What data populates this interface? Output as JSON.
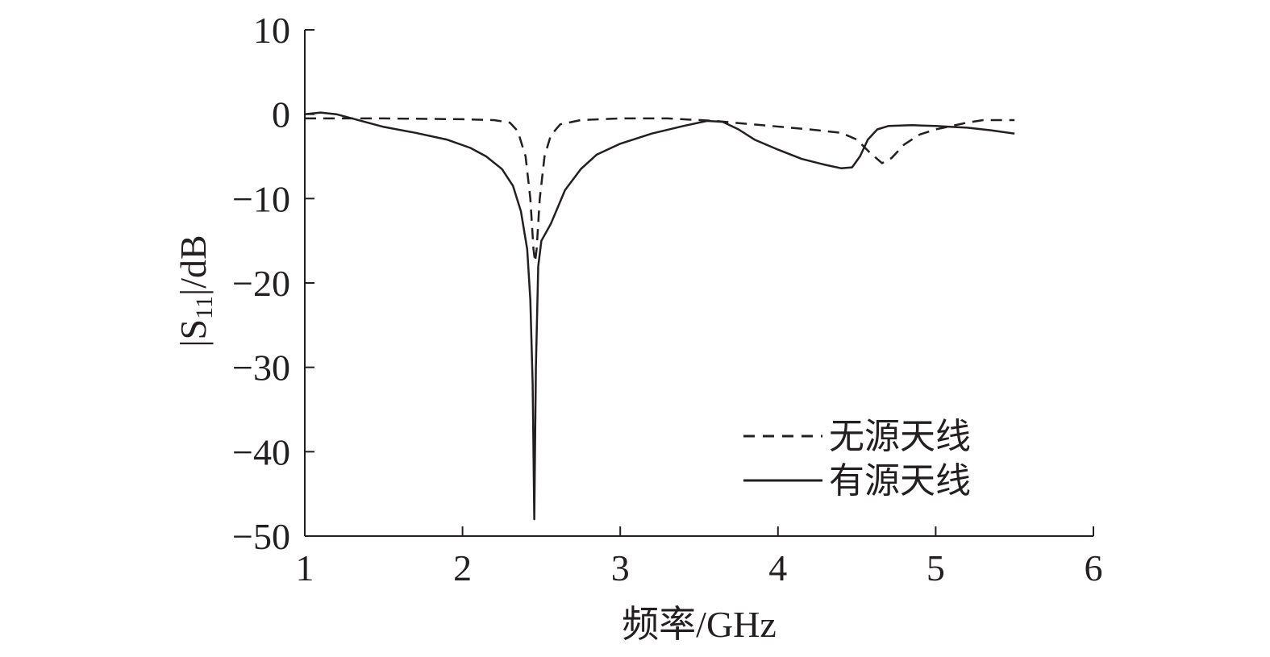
{
  "chart_data": {
    "type": "line",
    "title": "",
    "xlabel": "频率/GHz",
    "ylabel": {
      "prefix": "|S",
      "sub": "11",
      "suffix": "|/dB"
    },
    "xlim": [
      1,
      6
    ],
    "ylim": [
      -50,
      10
    ],
    "xticks": [
      1,
      2,
      3,
      4,
      5,
      6
    ],
    "yticks": [
      10,
      0,
      -10,
      -20,
      -30,
      -40,
      -50
    ],
    "grid": false,
    "legend_position": "bottom-right",
    "series": [
      {
        "name": "无源天线",
        "style": "dashed",
        "color": "#231f20",
        "points": [
          [
            1.0,
            -0.5
          ],
          [
            1.5,
            -0.5
          ],
          [
            2.0,
            -0.6
          ],
          [
            2.2,
            -0.7
          ],
          [
            2.3,
            -1.0
          ],
          [
            2.35,
            -2.0
          ],
          [
            2.4,
            -5.0
          ],
          [
            2.43,
            -10.0
          ],
          [
            2.45,
            -16.0
          ],
          [
            2.46,
            -17.5
          ],
          [
            2.47,
            -16.0
          ],
          [
            2.49,
            -10.0
          ],
          [
            2.52,
            -5.0
          ],
          [
            2.56,
            -2.5
          ],
          [
            2.62,
            -1.2
          ],
          [
            2.75,
            -0.7
          ],
          [
            3.0,
            -0.5
          ],
          [
            3.3,
            -0.5
          ],
          [
            3.6,
            -0.8
          ],
          [
            3.9,
            -1.3
          ],
          [
            4.2,
            -1.8
          ],
          [
            4.4,
            -2.2
          ],
          [
            4.5,
            -3.0
          ],
          [
            4.58,
            -4.5
          ],
          [
            4.66,
            -5.8
          ],
          [
            4.72,
            -5.2
          ],
          [
            4.8,
            -3.6
          ],
          [
            4.9,
            -2.4
          ],
          [
            5.0,
            -1.8
          ],
          [
            5.1,
            -1.4
          ],
          [
            5.2,
            -1.0
          ],
          [
            5.3,
            -0.7
          ],
          [
            5.5,
            -0.7
          ]
        ]
      },
      {
        "name": "有源天线",
        "style": "solid",
        "color": "#231f20",
        "points": [
          [
            1.0,
            0.0
          ],
          [
            1.1,
            0.2
          ],
          [
            1.2,
            0.0
          ],
          [
            1.3,
            -0.5
          ],
          [
            1.5,
            -1.5
          ],
          [
            1.7,
            -2.2
          ],
          [
            1.9,
            -3.0
          ],
          [
            2.05,
            -4.0
          ],
          [
            2.15,
            -5.0
          ],
          [
            2.25,
            -6.5
          ],
          [
            2.32,
            -8.5
          ],
          [
            2.37,
            -11.5
          ],
          [
            2.41,
            -16.0
          ],
          [
            2.43,
            -22.0
          ],
          [
            2.445,
            -32.0
          ],
          [
            2.455,
            -48.0
          ],
          [
            2.465,
            -30.0
          ],
          [
            2.48,
            -18.0
          ],
          [
            2.5,
            -15.0
          ],
          [
            2.56,
            -13.0
          ],
          [
            2.65,
            -9.0
          ],
          [
            2.75,
            -6.5
          ],
          [
            2.85,
            -4.8
          ],
          [
            3.0,
            -3.5
          ],
          [
            3.2,
            -2.3
          ],
          [
            3.4,
            -1.4
          ],
          [
            3.55,
            -0.8
          ],
          [
            3.65,
            -0.9
          ],
          [
            3.75,
            -1.8
          ],
          [
            3.85,
            -3.0
          ],
          [
            4.0,
            -4.2
          ],
          [
            4.15,
            -5.3
          ],
          [
            4.3,
            -6.0
          ],
          [
            4.4,
            -6.4
          ],
          [
            4.47,
            -6.3
          ],
          [
            4.52,
            -5.0
          ],
          [
            4.57,
            -3.0
          ],
          [
            4.63,
            -1.8
          ],
          [
            4.7,
            -1.4
          ],
          [
            4.85,
            -1.3
          ],
          [
            5.0,
            -1.4
          ],
          [
            5.1,
            -1.5
          ],
          [
            5.2,
            -1.6
          ],
          [
            5.35,
            -1.9
          ],
          [
            5.5,
            -2.3
          ]
        ]
      }
    ]
  }
}
